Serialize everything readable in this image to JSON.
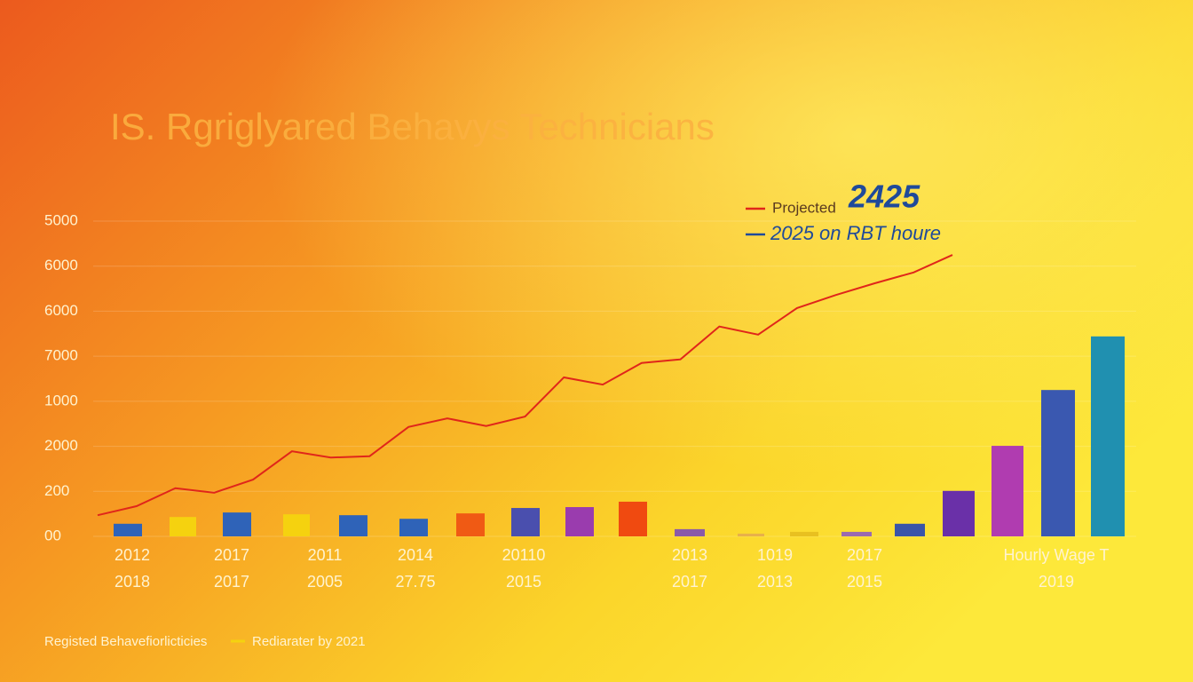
{
  "chart_data": {
    "type": "bar",
    "title": "IS. Rgriglyared Behavys Technicians",
    "ylim": [
      0,
      7
    ],
    "yticks": [
      {
        "value": 0,
        "label": "00"
      },
      {
        "value": 1,
        "label": "200"
      },
      {
        "value": 2,
        "label": "2000"
      },
      {
        "value": 3,
        "label": "1000"
      },
      {
        "value": 4,
        "label": "7000"
      },
      {
        "value": 5,
        "label": "6000"
      },
      {
        "value": 6,
        "label": "6000"
      },
      {
        "value": 7,
        "label": "5000"
      }
    ],
    "grid": true,
    "bars": {
      "values": [
        0.28,
        0.43,
        0.53,
        0.49,
        0.47,
        0.39,
        0.51,
        0.63,
        0.65,
        0.77,
        0.16,
        0.06,
        0.1,
        0.1,
        0.28,
        1.01,
        2.01,
        3.25,
        4.44
      ],
      "colors": [
        "#2f63b8",
        "#f5d20f",
        "#2f63b8",
        "#f5d20f",
        "#2f63b8",
        "#2f63b8",
        "#f05a14",
        "#4a4fae",
        "#9a3cae",
        "#f04a10",
        "#8a5aa8",
        "#e8b04a",
        "#e8c020",
        "#9a6ab0",
        "#3a55a8",
        "#6a30a8",
        "#b03cb0",
        "#3a58b0",
        "#2090b0"
      ]
    },
    "line": {
      "color": "#e0261a",
      "values": [
        0.47,
        0.67,
        1.07,
        0.97,
        1.26,
        1.89,
        1.75,
        1.78,
        2.43,
        2.62,
        2.45,
        2.66,
        3.53,
        3.37,
        3.85,
        3.93,
        4.66,
        4.48,
        5.07,
        5.36,
        5.62,
        5.86,
        6.25
      ]
    },
    "x_labels_top": [
      "2012",
      "2017",
      "2011",
      "2014",
      "20110",
      "2013",
      "1019",
      "2017",
      "Hourly Wage T"
    ],
    "x_labels_bottom": [
      "2018",
      "2017",
      "2005",
      "27.75",
      "2015",
      "2017",
      "2013",
      "2015",
      "2019"
    ],
    "legend_top": [
      {
        "name": "Projected",
        "color": "#e0261a",
        "highlight": "2425"
      },
      {
        "name": "2025 on RBT houre",
        "color": "#1f4a9a"
      }
    ],
    "legend_bottom": [
      {
        "name": "Registed Behavefiorlicticies"
      },
      {
        "name": "Rediarater by 2021",
        "color": "#f5d20f"
      }
    ]
  }
}
